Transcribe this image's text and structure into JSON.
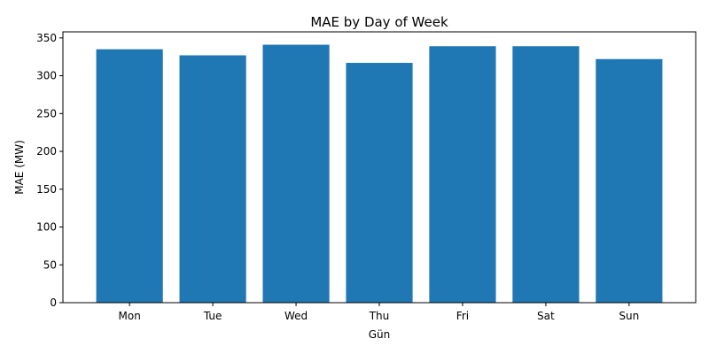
{
  "chart_data": {
    "type": "bar",
    "title": "MAE by Day of Week",
    "xlabel": "Gün",
    "ylabel": "MAE (MW)",
    "categories": [
      "Mon",
      "Tue",
      "Wed",
      "Thu",
      "Fri",
      "Sat",
      "Sun"
    ],
    "values": [
      335,
      327,
      341,
      317,
      339,
      339,
      322
    ],
    "ylim": [
      0,
      358
    ],
    "yticks": [
      0,
      50,
      100,
      150,
      200,
      250,
      300,
      350
    ],
    "grid": false,
    "bar_color": "#1f77b4"
  }
}
